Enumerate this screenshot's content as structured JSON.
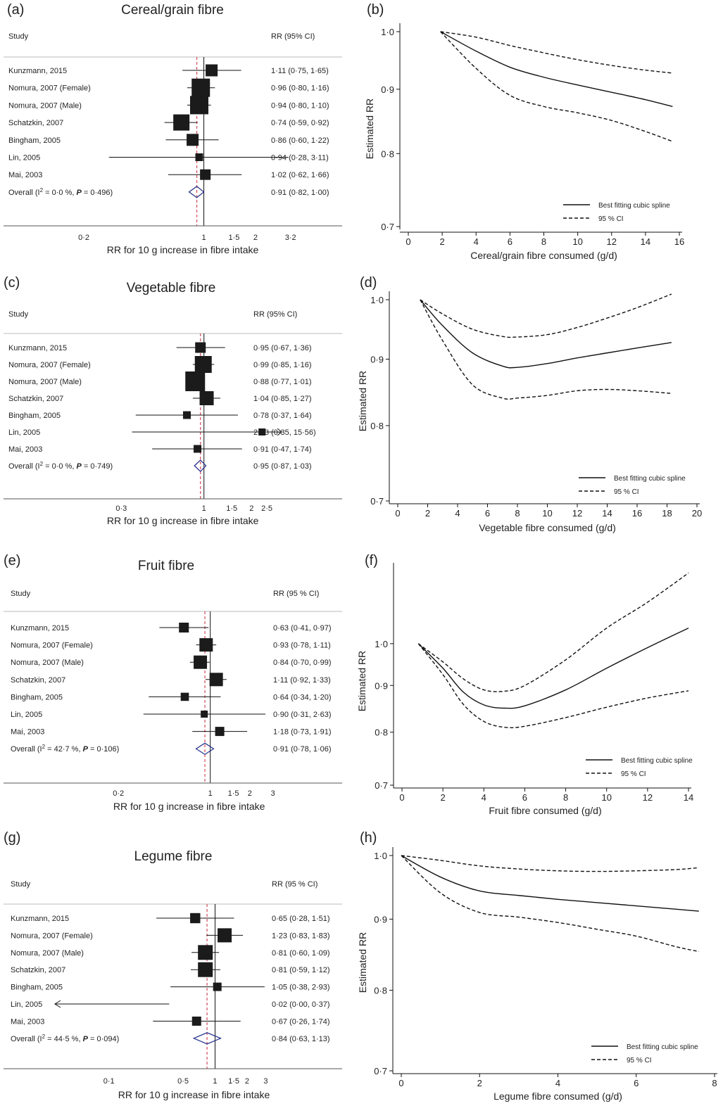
{
  "chart_data": [
    {
      "panel": "(a)",
      "type": "forest",
      "title": "Cereal/grain fibre",
      "col_study": "Study",
      "col_rr": "RR (95% CI)",
      "xlabel": "RR for 10 g increase in fibre intake",
      "scale": "log",
      "xlim": [
        0.12,
        5.0
      ],
      "ticks": [
        {
          "v": 0.2,
          "l": "0·2"
        },
        {
          "v": 1,
          "l": "1"
        },
        {
          "v": 1.5,
          "l": "1·5"
        },
        {
          "v": 2,
          "l": "2"
        },
        {
          "v": 3.2,
          "l": "3·2"
        }
      ],
      "pooled_line": 0.91,
      "studies": [
        {
          "name": "Kunzmann, 2015",
          "rr": 1.11,
          "lo": 0.75,
          "hi": 1.65,
          "label": "1·11 (0·75, 1·65)",
          "w": 0.55
        },
        {
          "name": "Nomura, 2007 (Female)",
          "rr": 0.96,
          "lo": 0.8,
          "hi": 1.16,
          "label": "0·96 (0·80, 1·16)",
          "w": 1.0
        },
        {
          "name": "Nomura, 2007 (Male)",
          "rr": 0.94,
          "lo": 0.8,
          "hi": 1.1,
          "label": "0·94 (0·80, 1·10)",
          "w": 1.0
        },
        {
          "name": "Schatzkin, 2007",
          "rr": 0.74,
          "lo": 0.59,
          "hi": 0.92,
          "label": "0·74 (0·59, 0·92)",
          "w": 0.85
        },
        {
          "name": "Bingham, 2005",
          "rr": 0.86,
          "lo": 0.6,
          "hi": 1.22,
          "label": "0·86 (0·60, 1·22)",
          "w": 0.55
        },
        {
          "name": "Lin, 2005",
          "rr": 0.94,
          "lo": 0.28,
          "hi": 3.11,
          "label": "0·94 (0·28, 3·11)",
          "w": 0.25
        },
        {
          "name": "Mai, 2003",
          "rr": 1.02,
          "lo": 0.62,
          "hi": 1.66,
          "label": "1·02 (0·62, 1·66)",
          "w": 0.45
        }
      ],
      "overall": {
        "prefix": "Overall (I",
        "sup": "2",
        "mid": " = 0·0 %, ",
        "p": "P",
        "suffix": " = 0·496)",
        "rr": 0.91,
        "lo": 0.82,
        "hi": 1.0,
        "label": "0·91 (0·82, 1·00)"
      }
    },
    {
      "panel": "(b)",
      "type": "line",
      "xlabel": "Cereal/grain fibre consumed (g/d)",
      "ylabel": "Estimated RR",
      "scale_y": "log",
      "xlim": [
        0,
        16
      ],
      "ylim": [
        0.7,
        1.0
      ],
      "xticks": [
        {
          "v": 0,
          "l": "0"
        },
        {
          "v": 2,
          "l": "2"
        },
        {
          "v": 4,
          "l": "4"
        },
        {
          "v": 6,
          "l": "6"
        },
        {
          "v": 8,
          "l": "8"
        },
        {
          "v": 10,
          "l": "10"
        },
        {
          "v": 12,
          "l": "12"
        },
        {
          "v": 14,
          "l": "14"
        },
        {
          "v": 16,
          "l": "16"
        }
      ],
      "yticks": [
        {
          "v": 0.7,
          "l": "0·7"
        },
        {
          "v": 0.8,
          "l": "0·8"
        },
        {
          "v": 0.9,
          "l": "0·9"
        },
        {
          "v": 1.0,
          "l": "1·0"
        }
      ],
      "legend": {
        "spline": "Best fitting cubic spline",
        "ci": "95 % CI"
      },
      "series": [
        {
          "name": "Best fitting cubic spline",
          "style": "solid",
          "x": [
            1.9,
            4,
            6,
            8,
            10,
            12,
            14,
            15.6
          ],
          "y": [
            1.0,
            0.965,
            0.937,
            0.92,
            0.907,
            0.895,
            0.883,
            0.872
          ]
        },
        {
          "name": "95 % CI",
          "style": "dashed",
          "x": [
            1.9,
            4,
            6,
            8,
            10,
            12,
            14,
            15.6
          ],
          "y": [
            1.0,
            0.99,
            0.975,
            0.962,
            0.95,
            0.94,
            0.932,
            0.927
          ]
        },
        {
          "name": "95 % CI",
          "style": "dashed",
          "x": [
            1.9,
            4,
            6,
            8,
            10,
            12,
            14,
            15.6
          ],
          "y": [
            1.0,
            0.935,
            0.89,
            0.872,
            0.862,
            0.85,
            0.833,
            0.818
          ]
        }
      ]
    },
    {
      "panel": "(c)",
      "type": "forest",
      "title": "Vegetable fibre",
      "col_study": "Study",
      "col_rr": "RR (95% CI)",
      "xlabel": "RR for 10 g increase in fibre intake",
      "scale": "log",
      "xlim": [
        0.17,
        3.1
      ],
      "ticks": [
        {
          "v": 0.3,
          "l": "0·3"
        },
        {
          "v": 1,
          "l": "1"
        },
        {
          "v": 1.5,
          "l": "1·5"
        },
        {
          "v": 2,
          "l": "2"
        },
        {
          "v": 2.5,
          "l": "2·5"
        }
      ],
      "pooled_line": 0.95,
      "studies": [
        {
          "name": "Kunzmann, 2015",
          "rr": 0.95,
          "lo": 0.67,
          "hi": 1.36,
          "label": "0·95 (0·67, 1·36)",
          "w": 0.45
        },
        {
          "name": "Nomura, 2007 (Female)",
          "rr": 0.99,
          "lo": 0.85,
          "hi": 1.16,
          "label": "0·99 (0·85, 1·16)",
          "w": 0.9
        },
        {
          "name": "Nomura, 2007 (Male)",
          "rr": 0.88,
          "lo": 0.77,
          "hi": 1.01,
          "label": "0·88 (0·77, 1·01)",
          "w": 1.1
        },
        {
          "name": "Schatzkin, 2007",
          "rr": 1.04,
          "lo": 0.85,
          "hi": 1.27,
          "label": "1·04 (0·85, 1·27)",
          "w": 0.7
        },
        {
          "name": "Bingham, 2005",
          "rr": 0.78,
          "lo": 0.37,
          "hi": 1.64,
          "label": "0·78 (0·37, 1·64)",
          "w": 0.25
        },
        {
          "name": "Lin, 2005",
          "rr": 2.33,
          "lo": 0.35,
          "hi": 15.56,
          "label": "2·33 (0·35, 15·56)",
          "w": 0.2
        },
        {
          "name": "Mai, 2003",
          "rr": 0.91,
          "lo": 0.47,
          "hi": 1.74,
          "label": "0·91 (0·47, 1·74)",
          "w": 0.25
        }
      ],
      "overall": {
        "prefix": "Overall (I",
        "sup": "2",
        "mid": " = 0·0 %, ",
        "p": "P",
        "suffix": " = 0·749)",
        "rr": 0.95,
        "lo": 0.87,
        "hi": 1.03,
        "label": "0·95 (0·87, 1·03)"
      }
    },
    {
      "panel": "(d)",
      "type": "line",
      "xlabel": "Vegetable fibre consumed (g/d)",
      "ylabel": "Estimated RR",
      "scale_y": "log",
      "xlim": [
        0,
        20
      ],
      "ylim": [
        0.7,
        1.0
      ],
      "xticks": [
        {
          "v": 0,
          "l": "0"
        },
        {
          "v": 2,
          "l": "2"
        },
        {
          "v": 4,
          "l": "4"
        },
        {
          "v": 6,
          "l": "6"
        },
        {
          "v": 8,
          "l": "8"
        },
        {
          "v": 10,
          "l": "10"
        },
        {
          "v": 12,
          "l": "12"
        },
        {
          "v": 14,
          "l": "14"
        },
        {
          "v": 16,
          "l": "16"
        },
        {
          "v": 18,
          "l": "18"
        },
        {
          "v": 20,
          "l": "20"
        }
      ],
      "yticks": [
        {
          "v": 0.7,
          "l": "0·7"
        },
        {
          "v": 0.8,
          "l": "0·8"
        },
        {
          "v": 0.9,
          "l": "0·9"
        },
        {
          "v": 1.0,
          "l": "1·0"
        }
      ],
      "legend": {
        "spline": "Best fitting cubic spline",
        "ci": "95 % CI"
      },
      "series": [
        {
          "name": "Best fitting cubic spline",
          "style": "solid",
          "x": [
            1.5,
            3,
            5,
            7,
            8,
            10,
            12,
            14,
            16,
            18.3
          ],
          "y": [
            1.0,
            0.955,
            0.91,
            0.889,
            0.887,
            0.893,
            0.902,
            0.91,
            0.918,
            0.927
          ]
        },
        {
          "name": "95 % CI",
          "style": "dashed",
          "x": [
            1.5,
            3,
            5,
            7,
            8,
            10,
            12,
            14,
            16,
            18.3
          ],
          "y": [
            1.0,
            0.975,
            0.949,
            0.937,
            0.936,
            0.94,
            0.952,
            0.968,
            0.986,
            1.01
          ]
        },
        {
          "name": "95 % CI",
          "style": "dashed",
          "x": [
            1.5,
            3,
            5,
            7,
            8,
            10,
            12,
            14,
            16,
            18.3
          ],
          "y": [
            1.0,
            0.93,
            0.86,
            0.84,
            0.84,
            0.844,
            0.851,
            0.853,
            0.851,
            0.847
          ]
        }
      ]
    },
    {
      "panel": "(e)",
      "type": "forest",
      "title": "Fruit fibre",
      "col_study": "Study",
      "col_rr": "RR (95 % CI)",
      "xlabel": "RR for 10 g increase in fibre intake",
      "scale": "log",
      "xlim": [
        0.105,
        4.2
      ],
      "ticks": [
        {
          "v": 0.2,
          "l": "0·2"
        },
        {
          "v": 1,
          "l": "1"
        },
        {
          "v": 1.5,
          "l": "1·5"
        },
        {
          "v": 2,
          "l": "2"
        },
        {
          "v": 3,
          "l": "3"
        }
      ],
      "pooled_line": 0.91,
      "studies": [
        {
          "name": "Kunzmann, 2015",
          "rr": 0.63,
          "lo": 0.41,
          "hi": 0.97,
          "label": "0·63 (0·41, 0·97)",
          "w": 0.4
        },
        {
          "name": "Nomura, 2007 (Female)",
          "rr": 0.93,
          "lo": 0.78,
          "hi": 1.11,
          "label": "0·93 (0·78, 1·11)",
          "w": 0.65
        },
        {
          "name": "Nomura, 2007 (Male)",
          "rr": 0.84,
          "lo": 0.7,
          "hi": 0.99,
          "label": "0·84 (0·70, 0·99)",
          "w": 0.65
        },
        {
          "name": "Schatzkin, 2007",
          "rr": 1.11,
          "lo": 0.92,
          "hi": 1.33,
          "label": "1·11 (0·92, 1·33)",
          "w": 0.65
        },
        {
          "name": "Bingham, 2005",
          "rr": 0.64,
          "lo": 0.34,
          "hi": 1.2,
          "label": "0·64 (0·34, 1·20)",
          "w": 0.28
        },
        {
          "name": "Lin, 2005",
          "rr": 0.9,
          "lo": 0.31,
          "hi": 2.63,
          "label": "0·90 (0·31, 2·63)",
          "w": 0.2
        },
        {
          "name": "Mai, 2003",
          "rr": 1.18,
          "lo": 0.73,
          "hi": 1.91,
          "label": "1·18 (0·73, 1·91)",
          "w": 0.35
        }
      ],
      "overall": {
        "prefix": "Overall (I",
        "sup": "2",
        "mid": " = 42·7 %, ",
        "p": "P",
        "suffix": " = 0·106)",
        "rr": 0.91,
        "lo": 0.78,
        "hi": 1.06,
        "label": "0·91 (0·78, 1·06)"
      }
    },
    {
      "panel": "(f)",
      "type": "line",
      "xlabel": "Fruit fibre consumed (g/d)",
      "ylabel": "Estimated RR",
      "scale_y": "log",
      "xlim": [
        0,
        14
      ],
      "ylim": [
        0.7,
        1.2
      ],
      "xticks": [
        {
          "v": 0,
          "l": "0"
        },
        {
          "v": 2,
          "l": "2"
        },
        {
          "v": 4,
          "l": "4"
        },
        {
          "v": 6,
          "l": "6"
        },
        {
          "v": 8,
          "l": "8"
        },
        {
          "v": 10,
          "l": "10"
        },
        {
          "v": 12,
          "l": "12"
        },
        {
          "v": 14,
          "l": "14"
        }
      ],
      "yticks": [
        {
          "v": 0.7,
          "l": "0·7"
        },
        {
          "v": 0.8,
          "l": "0·8"
        },
        {
          "v": 0.9,
          "l": "0·9"
        },
        {
          "v": 1.0,
          "l": "1·0"
        }
      ],
      "legend": {
        "spline": "Best fitting cubic spline",
        "ci": "95 % CI"
      },
      "series": [
        {
          "name": "Best fitting cubic spline",
          "style": "solid",
          "x": [
            0.8,
            2,
            3,
            4,
            5,
            6,
            8,
            10,
            12,
            14
          ],
          "y": [
            1.0,
            0.94,
            0.885,
            0.857,
            0.85,
            0.855,
            0.89,
            0.94,
            0.99,
            1.04
          ]
        },
        {
          "name": "95 % CI",
          "style": "dashed",
          "x": [
            0.8,
            2,
            3,
            4,
            5,
            6,
            8,
            10,
            12,
            14
          ],
          "y": [
            1.0,
            0.955,
            0.915,
            0.89,
            0.887,
            0.9,
            0.96,
            1.04,
            1.11,
            1.195
          ]
        },
        {
          "name": "95 % CI",
          "style": "dashed",
          "x": [
            0.8,
            2,
            3,
            4,
            5,
            6,
            8,
            10,
            12,
            14
          ],
          "y": [
            1.0,
            0.925,
            0.858,
            0.822,
            0.81,
            0.812,
            0.83,
            0.852,
            0.872,
            0.888
          ]
        }
      ]
    },
    {
      "panel": "(g)",
      "type": "forest",
      "title": "Legume fibre",
      "col_study": "Study",
      "col_rr": "RR (95 % CI)",
      "xlabel": "RR for 10 g increase in fibre intake",
      "scale": "log",
      "xlim": [
        0.031,
        4.5
      ],
      "ticks": [
        {
          "v": 0.1,
          "l": "0·1"
        },
        {
          "v": 0.5,
          "l": "0·5"
        },
        {
          "v": 1,
          "l": "1"
        },
        {
          "v": 1.5,
          "l": "1·5"
        },
        {
          "v": 2,
          "l": "2"
        },
        {
          "v": 3,
          "l": "3"
        }
      ],
      "pooled_line": 0.84,
      "studies": [
        {
          "name": "Kunzmann, 2015",
          "rr": 0.65,
          "lo": 0.28,
          "hi": 1.51,
          "label": "0·65 (0·28, 1·51)",
          "w": 0.42
        },
        {
          "name": "Nomura, 2007 (Female)",
          "rr": 1.23,
          "lo": 0.83,
          "hi": 1.83,
          "label": "1·23 (0·83, 1·83)",
          "w": 0.7
        },
        {
          "name": "Nomura, 2007 (Male)",
          "rr": 0.81,
          "lo": 0.6,
          "hi": 1.09,
          "label": "0·81 (0·60, 1·09)",
          "w": 0.75
        },
        {
          "name": "Schatzkin, 2007",
          "rr": 0.81,
          "lo": 0.59,
          "hi": 1.12,
          "label": "0·81 (0·59, 1·12)",
          "w": 0.75
        },
        {
          "name": "Bingham, 2005",
          "rr": 1.05,
          "lo": 0.38,
          "hi": 2.93,
          "label": "1·05 (0·38, 2·93)",
          "w": 0.3
        },
        {
          "name": "Lin, 2005",
          "rr": 0.02,
          "lo": 0.0,
          "hi": 0.37,
          "label": "0·02 (0·00, 0·37)",
          "w": 0
        },
        {
          "name": "Mai, 2003",
          "rr": 0.67,
          "lo": 0.26,
          "hi": 1.74,
          "label": "0·67 (0·26, 1·74)",
          "w": 0.35
        }
      ],
      "overall": {
        "prefix": "Overall (I",
        "sup": "2",
        "mid": " = 44·5 %, ",
        "p": "P",
        "suffix": " = 0·094)",
        "rr": 0.84,
        "lo": 0.63,
        "hi": 1.13,
        "label": "0·84 (0·63, 1·13)"
      }
    },
    {
      "panel": "(h)",
      "type": "line",
      "xlabel": "Legume fibre consumed (g/d)",
      "ylabel": "Estimated RR",
      "scale_y": "log",
      "xlim": [
        0,
        8
      ],
      "ylim": [
        0.7,
        1.0
      ],
      "xticks": [
        {
          "v": 0,
          "l": "0"
        },
        {
          "v": 2,
          "l": "2"
        },
        {
          "v": 4,
          "l": "4"
        },
        {
          "v": 6,
          "l": "6"
        },
        {
          "v": 8,
          "l": "8"
        }
      ],
      "yticks": [
        {
          "v": 0.7,
          "l": "0·7"
        },
        {
          "v": 0.8,
          "l": "0·8"
        },
        {
          "v": 0.9,
          "l": "0·9"
        },
        {
          "v": 1.0,
          "l": "1·0"
        }
      ],
      "legend": {
        "spline": "Best fitting cubic spline",
        "ci": "95 % CI"
      },
      "series": [
        {
          "name": "Best fitting cubic spline",
          "style": "solid",
          "x": [
            0,
            1,
            2,
            3,
            4,
            5,
            6,
            7,
            7.6
          ],
          "y": [
            1.0,
            0.965,
            0.943,
            0.936,
            0.93,
            0.925,
            0.92,
            0.915,
            0.912
          ]
        },
        {
          "name": "95 % CI",
          "style": "dashed",
          "x": [
            0,
            1,
            2,
            3,
            4,
            5,
            6,
            7,
            7.6
          ],
          "y": [
            1.0,
            0.992,
            0.983,
            0.978,
            0.975,
            0.974,
            0.975,
            0.977,
            0.98
          ]
        },
        {
          "name": "95 % CI",
          "style": "dashed",
          "x": [
            0,
            1,
            2,
            3,
            4,
            5,
            6,
            7,
            7.6
          ],
          "y": [
            1.0,
            0.94,
            0.91,
            0.903,
            0.895,
            0.885,
            0.875,
            0.86,
            0.853
          ]
        }
      ]
    }
  ]
}
